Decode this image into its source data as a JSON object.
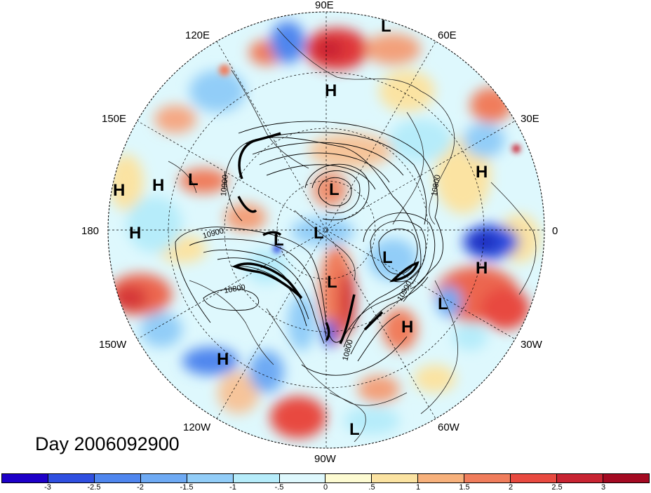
{
  "title": "Day 2006092900",
  "projection": "north-polar-stereographic",
  "longitude_labels": [
    "90E",
    "60E",
    "30E",
    "0",
    "30W",
    "60W",
    "90W",
    "120W",
    "150W",
    "180",
    "150E",
    "120E"
  ],
  "pressure_systems": [
    {
      "type": "L",
      "label": "L"
    },
    {
      "type": "H",
      "label": "H"
    },
    {
      "type": "H",
      "label": "H"
    },
    {
      "type": "H",
      "label": "H"
    },
    {
      "type": "H",
      "label": "H"
    },
    {
      "type": "L",
      "label": "L"
    },
    {
      "type": "H",
      "label": "H"
    },
    {
      "type": "L",
      "label": "L"
    },
    {
      "type": "L",
      "label": "L"
    },
    {
      "type": "L",
      "label": "L"
    },
    {
      "type": "L",
      "label": "L"
    },
    {
      "type": "H",
      "label": "H"
    },
    {
      "type": "L",
      "label": "L"
    },
    {
      "type": "L",
      "label": "L"
    },
    {
      "type": "H",
      "label": "H"
    },
    {
      "type": "H",
      "label": "H"
    },
    {
      "type": "L",
      "label": "L"
    }
  ],
  "contour_labels": [
    "10900",
    "10900",
    "10800",
    "10800",
    "10900",
    "10800"
  ],
  "colorbar": {
    "tick_labels": [
      "-3",
      "-2.5",
      "-2",
      "-1.5",
      "-1",
      "-.5",
      "0",
      ".5",
      "1",
      "1.5",
      "2",
      "2.5",
      "3"
    ],
    "colors": [
      "#1d00c8",
      "#2f4fe0",
      "#4f86ee",
      "#6eaaf4",
      "#92cdf8",
      "#b6ecfa",
      "#def8fd",
      "#fdfbd2",
      "#fbe3a2",
      "#f7b17c",
      "#f07d5c",
      "#e84a40",
      "#c82432",
      "#a40a22"
    ]
  }
}
